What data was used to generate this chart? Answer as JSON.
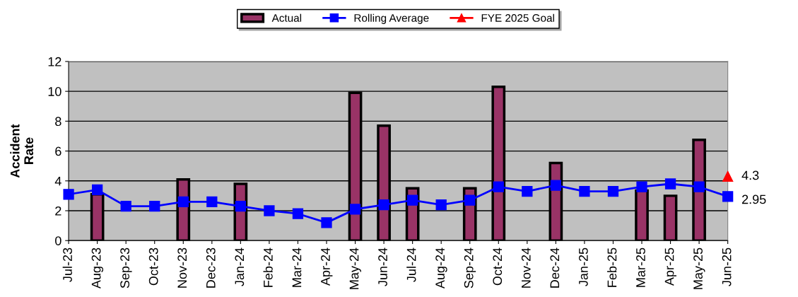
{
  "chart_data": {
    "type": "bar",
    "ylabel": "Accident\nRate",
    "categories": [
      "Jul-23",
      "Aug-23",
      "Sep-23",
      "Oct-23",
      "Nov-23",
      "Dec-23",
      "Jan-24",
      "Feb-24",
      "Mar-24",
      "Apr-24",
      "May-24",
      "Jun-24",
      "Jul-24",
      "Aug-24",
      "Sep-24",
      "Oct-24",
      "Nov-24",
      "Dec-24",
      "Jan-25",
      "Feb-25",
      "Mar-25",
      "Apr-25",
      "May-25",
      "Jun-25"
    ],
    "series": [
      {
        "name": "Actual",
        "color": "#993366",
        "values": [
          null,
          3.1,
          null,
          null,
          4.1,
          null,
          3.8,
          null,
          null,
          null,
          9.9,
          7.7,
          3.5,
          null,
          3.5,
          10.3,
          null,
          5.2,
          null,
          null,
          3.35,
          3.0,
          6.75,
          null
        ]
      },
      {
        "name": "Rolling Average",
        "type": "line",
        "color": "#0000ff",
        "marker": "square",
        "values": [
          3.1,
          3.4,
          2.3,
          2.3,
          2.6,
          2.6,
          2.3,
          2.0,
          1.8,
          1.2,
          2.1,
          2.4,
          2.7,
          2.4,
          2.7,
          3.6,
          3.3,
          3.7,
          3.3,
          3.3,
          3.6,
          3.8,
          3.6,
          2.95
        ],
        "value_labels": [
          null,
          null,
          null,
          null,
          null,
          null,
          null,
          null,
          null,
          null,
          null,
          null,
          null,
          null,
          null,
          null,
          null,
          null,
          null,
          null,
          null,
          null,
          null,
          "2.95"
        ]
      },
      {
        "name": "FYE 2025 Goal",
        "type": "line",
        "color": "#ff0000",
        "marker": "triangle",
        "values": [
          null,
          null,
          null,
          null,
          null,
          null,
          null,
          null,
          null,
          null,
          null,
          null,
          null,
          null,
          null,
          null,
          null,
          null,
          null,
          null,
          null,
          null,
          null,
          4.3
        ],
        "value_labels": [
          null,
          null,
          null,
          null,
          null,
          null,
          null,
          null,
          null,
          null,
          null,
          null,
          null,
          null,
          null,
          null,
          null,
          null,
          null,
          null,
          null,
          null,
          null,
          "4.3"
        ]
      }
    ],
    "ylim": [
      0,
      12
    ],
    "yticks": [
      0,
      2,
      4,
      6,
      8,
      10,
      12
    ],
    "grid": "y",
    "legend": "top"
  }
}
